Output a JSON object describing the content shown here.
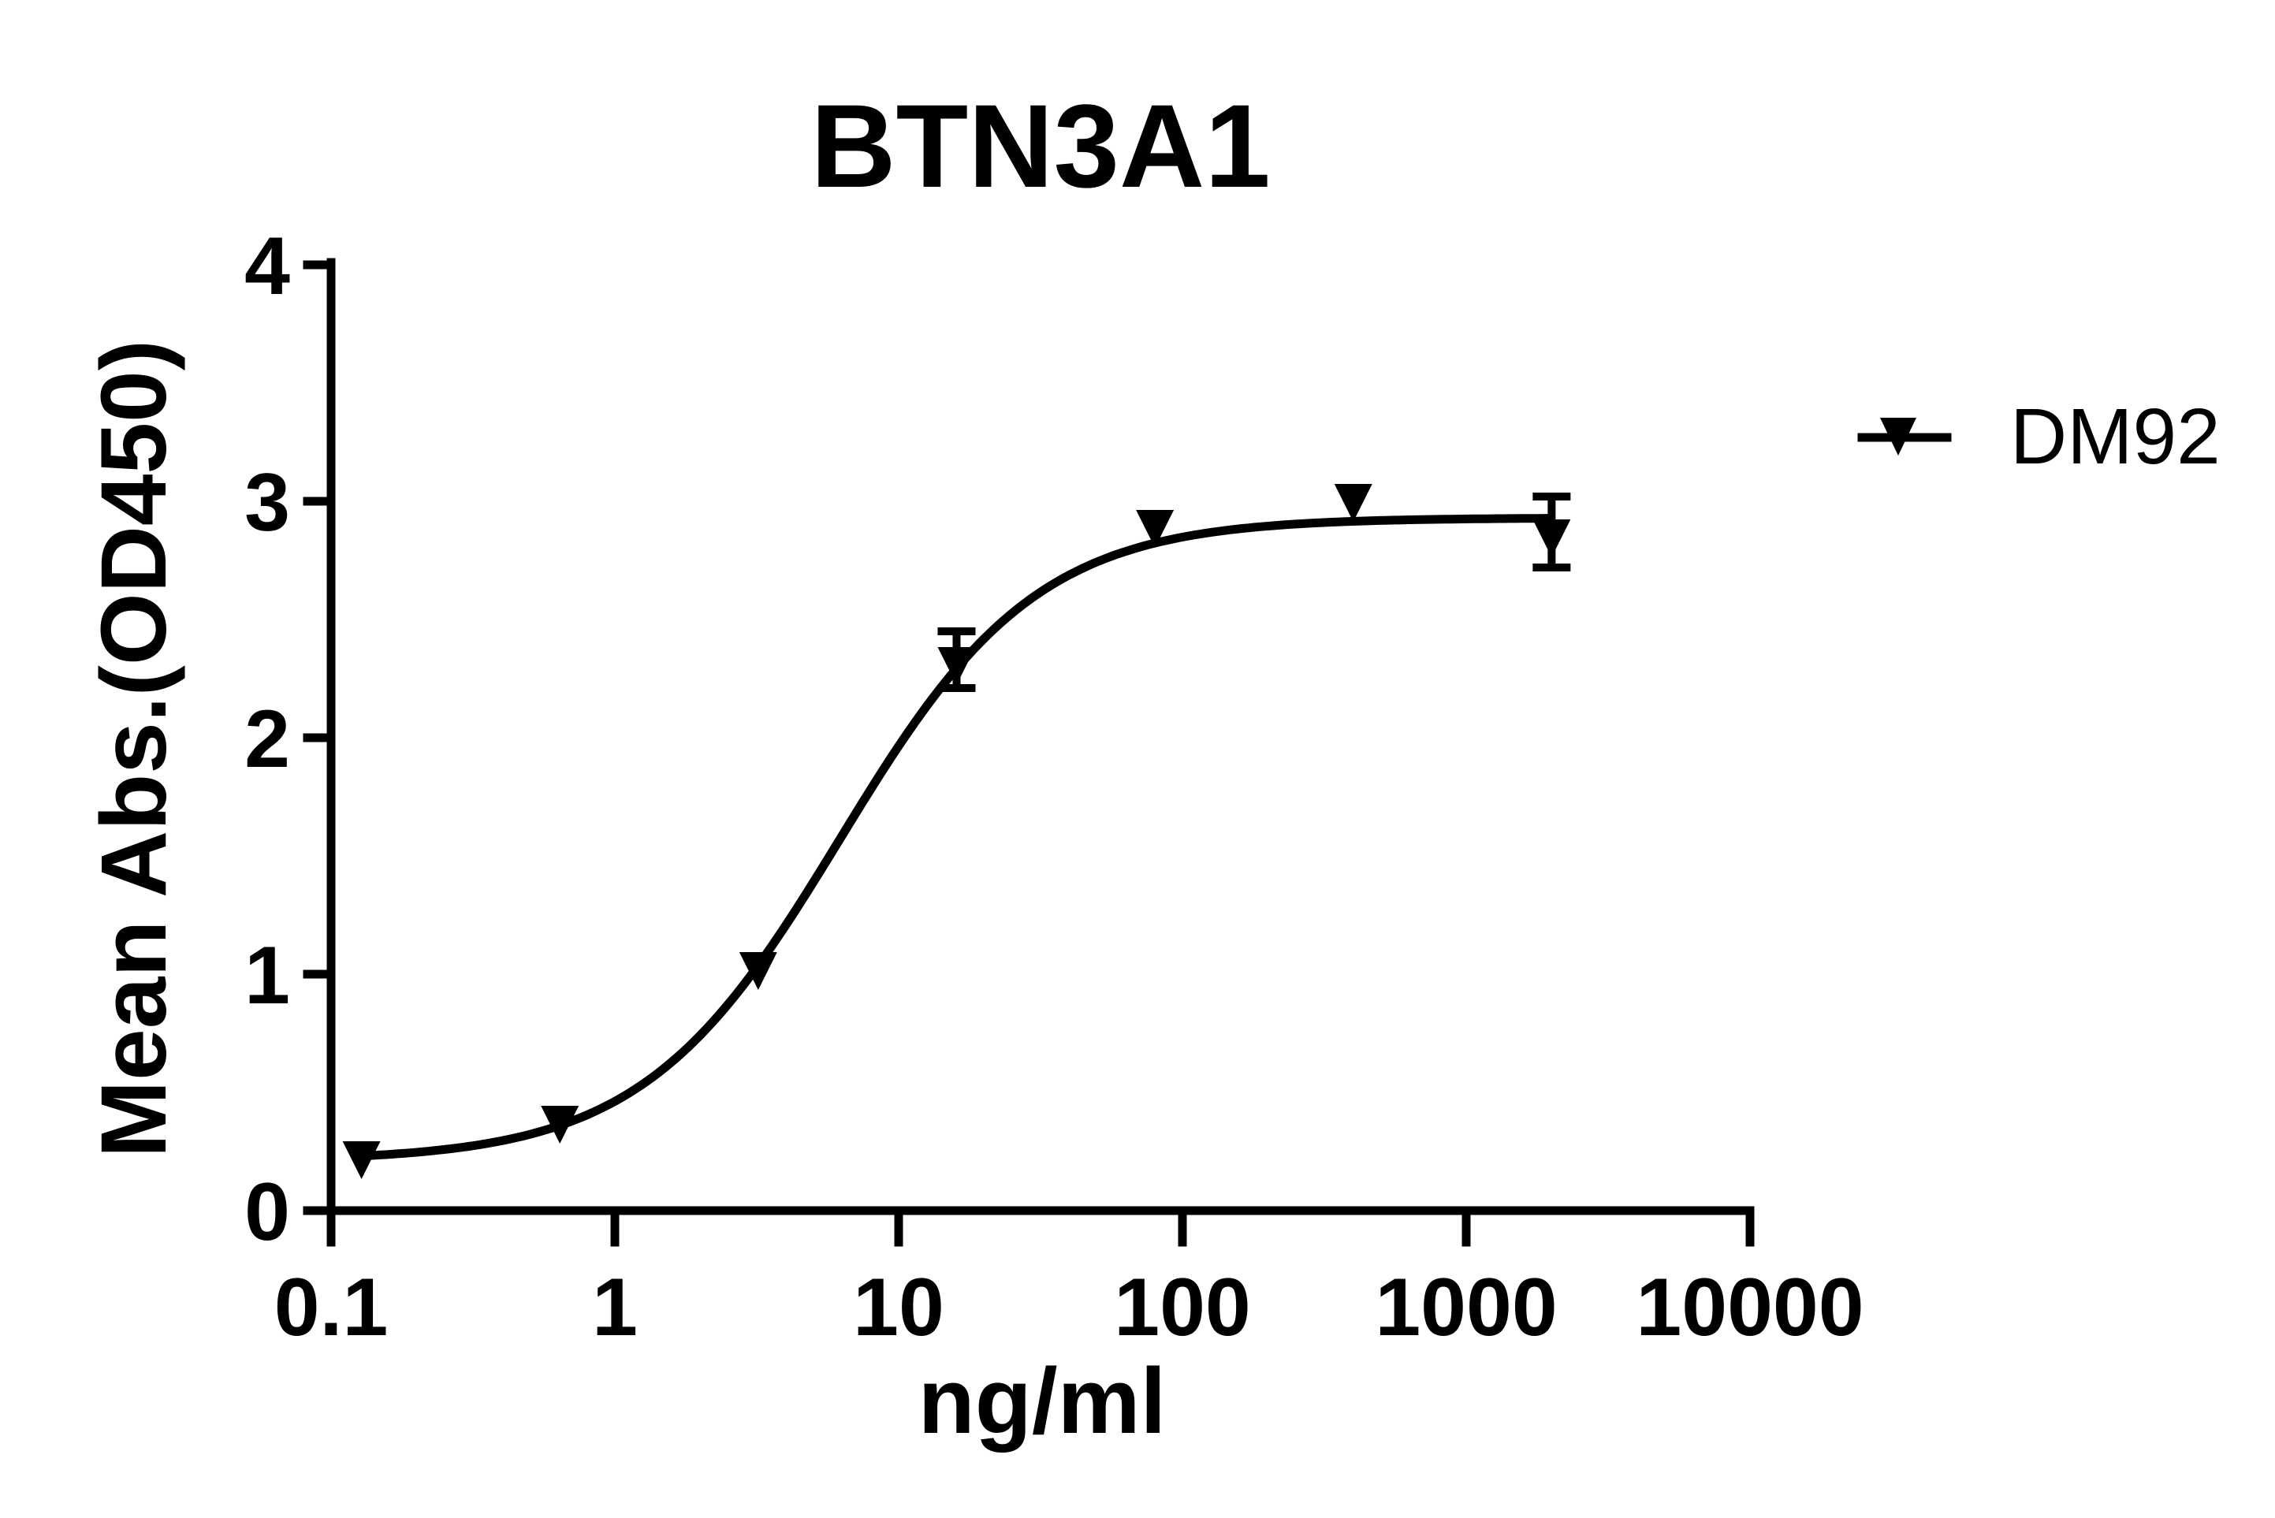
{
  "chart_data": {
    "type": "line",
    "title": "BTN3A1",
    "xlabel": "ng/ml",
    "ylabel": "Mean Abs.(OD450)",
    "x_scale": "log",
    "xlim": [
      0.1,
      10000
    ],
    "ylim": [
      0,
      4
    ],
    "x_ticks": [
      "0.1",
      "1",
      "10",
      "100",
      "1000",
      "10000"
    ],
    "y_ticks": [
      "0",
      "1",
      "2",
      "3",
      "4"
    ],
    "grid": false,
    "legend_position": "right",
    "fit": "four-parameter logistic (sigmoidal) curve",
    "series": [
      {
        "name": "DM92",
        "marker": "down-triangle",
        "color": "#000000",
        "x": [
          0.128,
          0.64,
          3.2,
          16,
          80,
          400,
          2000
        ],
        "values": [
          0.24,
          0.39,
          1.04,
          2.33,
          2.91,
          3.02,
          2.87
        ],
        "error": [
          0,
          0,
          0,
          0.12,
          0,
          0,
          0.15
        ]
      }
    ],
    "fit_params": {
      "bottom": 0.21,
      "top": 2.93,
      "ec50": 6.2,
      "hill": 1.25
    }
  },
  "legend": {
    "items": [
      {
        "label": "DM92"
      }
    ]
  }
}
